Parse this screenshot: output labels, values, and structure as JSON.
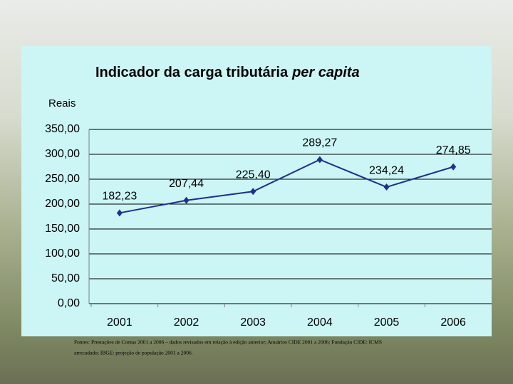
{
  "chart_data": {
    "type": "line",
    "title": "Indicador da carga tributária",
    "title_italic": "per capita",
    "y_label": "Reais",
    "categories": [
      "2001",
      "2002",
      "2003",
      "2004",
      "2005",
      "2006"
    ],
    "series": [
      {
        "name": "Carga tributária per capita",
        "color": "#1f2f8f",
        "values": [
          182.23,
          207.44,
          225.4,
          289.27,
          234.24,
          274.85
        ],
        "value_labels": [
          "182,23",
          "207,44",
          "225,40",
          "289,27",
          "234,24",
          "274,85"
        ]
      }
    ],
    "ylim": [
      0,
      350
    ],
    "yticks": [
      {
        "value": 0,
        "label": "0,00"
      },
      {
        "value": 50,
        "label": "50,00"
      },
      {
        "value": 100,
        "label": "100,00"
      },
      {
        "value": 150,
        "label": "150,00"
      },
      {
        "value": 200,
        "label": "200,00"
      },
      {
        "value": 250,
        "label": "250,00"
      },
      {
        "value": 300,
        "label": "300,00"
      },
      {
        "value": 350,
        "label": "350,00"
      }
    ],
    "grid": true,
    "notes": [
      "Fontes: Prestações de Contas 2001 a 2006 – dados revisados em relação à edição anterior; Anuários CIDE 2001 a 2006; Fundação CIDE: ICMS",
      "arrecadado; IBGE: projeção de população 2001 a 2006."
    ]
  }
}
